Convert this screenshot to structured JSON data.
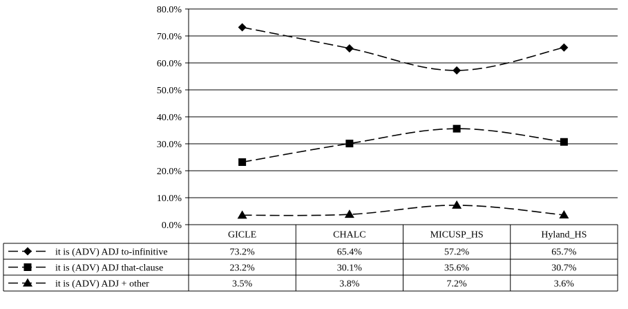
{
  "chart_data": {
    "type": "line",
    "title": "",
    "xlabel": "",
    "ylabel": "",
    "ylim": [
      0,
      80
    ],
    "y_ticks": [
      "0.0%",
      "10.0%",
      "20.0%",
      "30.0%",
      "40.0%",
      "50.0%",
      "60.0%",
      "70.0%",
      "80.0%"
    ],
    "grid": true,
    "legend_placement": "data table (left column)",
    "categories": [
      "GICLE",
      "CHALC",
      "MICUSP_HS",
      "Hyland_HS"
    ],
    "series": [
      {
        "name": "it is (ADV) ADJ to-infinitive",
        "marker": "diamond",
        "values": [
          73.2,
          65.4,
          57.2,
          65.7
        ],
        "labels": [
          "73.2%",
          "65.4%",
          "57.2%",
          "65.7%"
        ]
      },
      {
        "name": "it is (ADV) ADJ that-clause",
        "marker": "square",
        "values": [
          23.2,
          30.1,
          35.6,
          30.7
        ],
        "labels": [
          "23.2%",
          "30.1%",
          "35.6%",
          "30.7%"
        ]
      },
      {
        "name": "it is (ADV) ADJ + other",
        "marker": "triangle",
        "values": [
          3.5,
          3.8,
          7.2,
          3.6
        ],
        "labels": [
          "3.5%",
          "3.8%",
          "7.2%",
          "3.6%"
        ]
      }
    ],
    "line_style": "dashed",
    "colors": {
      "line": "#000000",
      "grid": "#000000",
      "background": "#ffffff"
    }
  }
}
